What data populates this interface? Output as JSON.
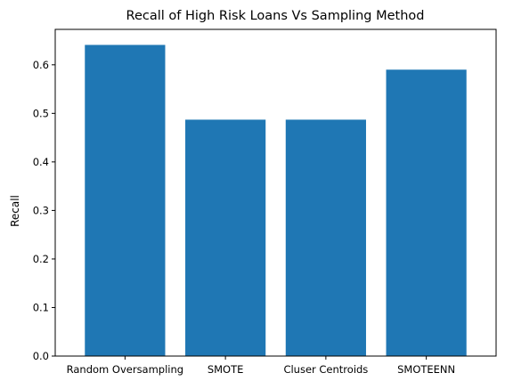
{
  "chart_data": {
    "type": "bar",
    "title": "Recall of High Risk Loans Vs Sampling Method",
    "xlabel": "",
    "ylabel": "Recall",
    "categories": [
      "Random Oversampling",
      "SMOTE",
      "Cluser Centroids",
      "SMOTEENN"
    ],
    "values": [
      0.641,
      0.487,
      0.487,
      0.59
    ],
    "ylim": [
      0,
      0.673
    ],
    "yticks": [
      "0.0",
      "0.1",
      "0.2",
      "0.3",
      "0.4",
      "0.5",
      "0.6"
    ],
    "bar_color": "#1f77b4",
    "grid": false,
    "legend": "none"
  }
}
